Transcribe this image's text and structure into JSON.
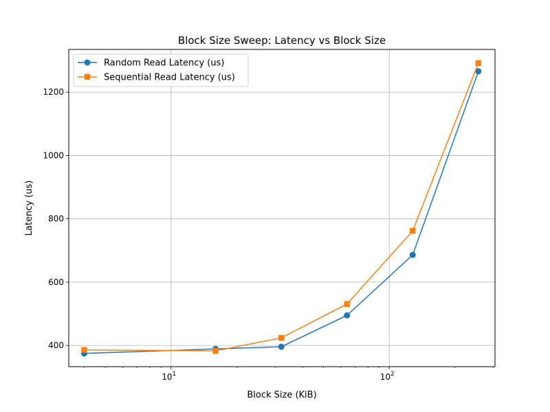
{
  "chart_data": {
    "type": "line",
    "title": "Block Size Sweep: Latency vs Block Size",
    "xlabel": "Block Size (KiB)",
    "ylabel": "Latency (us)",
    "xscale": "log",
    "xlim": [
      3.4,
      305
    ],
    "ylim": [
      333,
      1335
    ],
    "x_ticks": [
      {
        "value": 10,
        "label": "10",
        "sup": "1"
      },
      {
        "value": 100,
        "label": "10",
        "sup": "2"
      }
    ],
    "y_ticks": [
      400,
      600,
      800,
      1000,
      1200
    ],
    "grid": true,
    "legend_position": "upper-left",
    "x": [
      4,
      16,
      32,
      64,
      128,
      256
    ],
    "series": [
      {
        "name": "Random Read Latency (us)",
        "color": "#1f77b4",
        "marker": "circle",
        "values": [
          375,
          389,
          396,
          495,
          686,
          1266
        ]
      },
      {
        "name": "Sequential Read Latency (us)",
        "color": "#ff7f0e",
        "marker": "square",
        "values": [
          386,
          383,
          424,
          531,
          762,
          1292
        ]
      }
    ]
  }
}
